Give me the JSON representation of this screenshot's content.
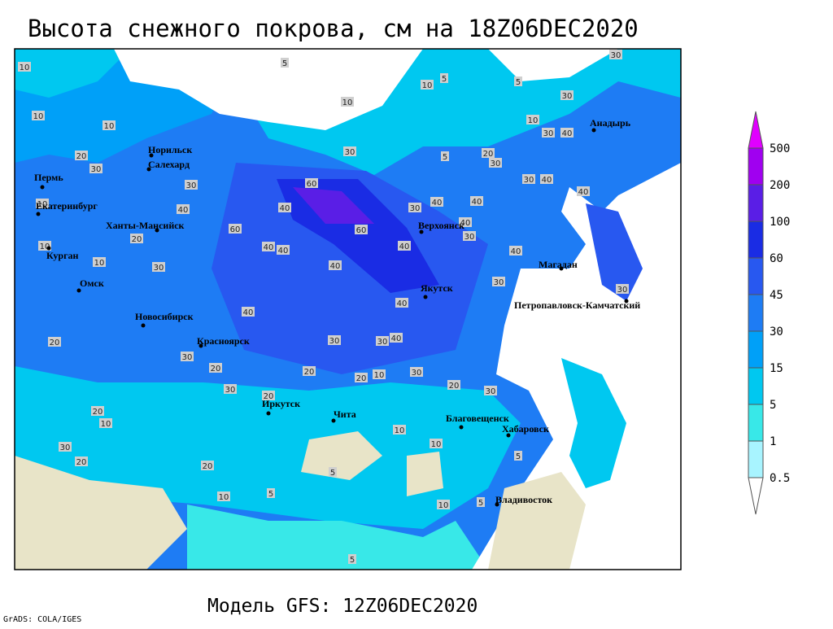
{
  "header": {
    "title": "Высота снежного покрова, см на 18Z06DEC2020"
  },
  "footer": {
    "model": "Модель GFS: 12Z06DEC2020",
    "credit": "GrADS: COLA/IGES"
  },
  "legend": {
    "levels": [
      "0.5",
      "1",
      "5",
      "15",
      "30",
      "45",
      "60",
      "100",
      "200",
      "500"
    ],
    "colors": [
      "#ffffff",
      "#a8f4ff",
      "#38e8e8",
      "#00c8f0",
      "#00a0f8",
      "#1e7cf4",
      "#2858f0",
      "#1a2ce4",
      "#5a1ee6",
      "#a000f0",
      "#e000ff"
    ]
  },
  "cities": [
    "Норильск",
    "Салехард",
    "Пермь",
    "Екатеринбург",
    "Ханты-Мансийск",
    "Курган",
    "Омск",
    "Новосибирск",
    "Красноярск",
    "Иркутск",
    "Чита",
    "Благовещенск",
    "Хабаровск",
    "Владивосток",
    "Якутск",
    "Верхоянск",
    "Магадан",
    "Анадырь",
    "Петропавловск-Камчатский"
  ],
  "contour_labels": [
    "10",
    "10",
    "10",
    "20",
    "30",
    "10",
    "10",
    "10",
    "20",
    "30",
    "40",
    "30",
    "40",
    "40",
    "40",
    "60",
    "60",
    "40",
    "40",
    "40",
    "30",
    "40",
    "40",
    "30",
    "40",
    "40",
    "30",
    "30",
    "40",
    "20",
    "30",
    "20",
    "30",
    "20",
    "20",
    "20",
    "10",
    "30",
    "20",
    "30",
    "20",
    "10",
    "30",
    "20",
    "20",
    "10",
    "5",
    "5",
    "10",
    "10",
    "10",
    "5",
    "5",
    "5",
    "5",
    "10",
    "10",
    "5",
    "5",
    "5",
    "30",
    "30",
    "30",
    "40",
    "10",
    "30",
    "30",
    "40",
    "40",
    "30",
    "30",
    "40",
    "20",
    "30",
    "60"
  ]
}
